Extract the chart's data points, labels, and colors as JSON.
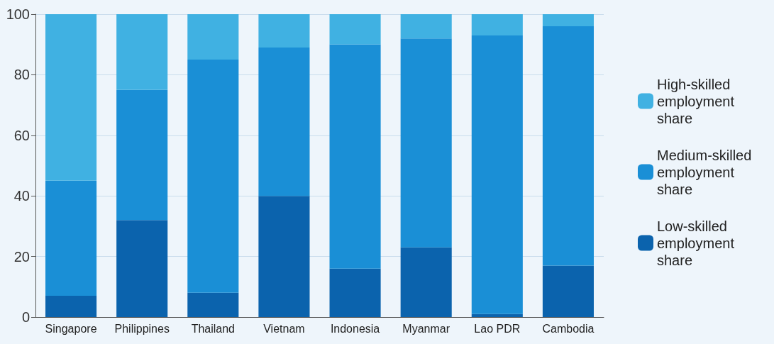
{
  "chart_data": {
    "type": "bar",
    "stacked": true,
    "categories": [
      "Singapore",
      "Philippines",
      "Thailand",
      "Vietnam",
      "Indonesia",
      "Myanmar",
      "Lao PDR",
      "Cambodia"
    ],
    "series": [
      {
        "name": "Low-skilled employment share",
        "color": "#0b63ad",
        "values": [
          7,
          32,
          8,
          40,
          16,
          23,
          1,
          17
        ]
      },
      {
        "name": "Medium-skilled employment share",
        "color": "#1a8fd6",
        "values": [
          38,
          43,
          77,
          49,
          74,
          69,
          92,
          79
        ]
      },
      {
        "name": "High-skilled employment share",
        "color": "#40b1e2",
        "values": [
          55,
          25,
          15,
          11,
          10,
          8,
          7,
          4
        ]
      }
    ],
    "ylim": [
      0,
      100
    ],
    "yticks": [
      0,
      20,
      40,
      60,
      80,
      100
    ],
    "grid": "y",
    "legend": "right"
  }
}
